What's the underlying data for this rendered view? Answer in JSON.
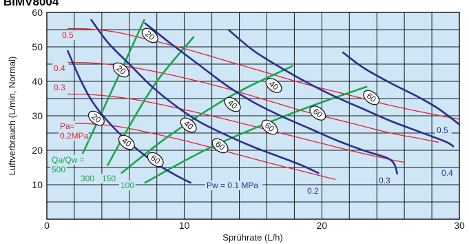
{
  "header_text": "BIMV8004",
  "chart_data": {
    "type": "line",
    "xlabel": "Sprührate (L/h)",
    "ylabel": "Luftverbrauch (L/min, Normal)",
    "xlim": [
      0,
      30
    ],
    "ylim": [
      0,
      60
    ],
    "x_ticks": [
      "0",
      "10",
      "20",
      "30"
    ],
    "y_ticks": [
      "10",
      "20",
      "30",
      "40",
      "50",
      "60"
    ],
    "grid": true,
    "colors": {
      "air_pressure": "#e8202a",
      "water_pressure": "#2b2f8f",
      "ratio": "#1aa64a",
      "plot_bg": "#cfe6f7",
      "grid": "#1a1a1a"
    },
    "air_pressure_series": [
      {
        "label": "0.5",
        "points": [
          [
            1.5,
            55.3
          ],
          [
            3,
            55.2
          ],
          [
            5,
            54.3
          ],
          [
            7,
            52.5
          ],
          [
            10,
            49.5
          ],
          [
            13,
            46
          ],
          [
            16,
            42.5
          ],
          [
            19,
            39
          ],
          [
            22,
            36
          ],
          [
            25,
            33
          ],
          [
            28,
            30.5
          ],
          [
            30,
            29
          ]
        ]
      },
      {
        "label": "0.4",
        "points": [
          [
            1.5,
            45.5
          ],
          [
            3,
            45.4
          ],
          [
            5,
            44.7
          ],
          [
            7,
            43.5
          ],
          [
            10,
            41
          ],
          [
            13,
            38
          ],
          [
            16,
            34.5
          ],
          [
            19,
            31
          ],
          [
            22,
            28
          ],
          [
            25,
            25
          ],
          [
            27,
            23.5
          ],
          [
            28.5,
            22.3
          ]
        ]
      },
      {
        "label": "0.3",
        "points": [
          [
            1.5,
            36.3
          ],
          [
            3,
            36.2
          ],
          [
            5,
            35.5
          ],
          [
            7,
            34.3
          ],
          [
            10,
            31.8
          ],
          [
            13,
            29
          ],
          [
            16,
            26
          ],
          [
            19,
            23
          ],
          [
            22,
            20
          ],
          [
            25,
            17.3
          ],
          [
            26,
            16.5
          ]
        ]
      },
      {
        "label": "Pa=\n0.2MPa",
        "points": [
          [
            1.5,
            27.8
          ],
          [
            3,
            27.7
          ],
          [
            5,
            27
          ],
          [
            7,
            25.5
          ],
          [
            10,
            22.8
          ],
          [
            13,
            19.7
          ],
          [
            16,
            16.5
          ],
          [
            19,
            13.5
          ],
          [
            21,
            11.5
          ]
        ]
      }
    ],
    "water_pressure_series": [
      {
        "label": "Pw = 0.1 MPa",
        "points": [
          [
            1.5,
            49
          ],
          [
            2.5,
            40
          ],
          [
            3.5,
            33
          ],
          [
            5,
            26
          ],
          [
            6.5,
            20.5
          ],
          [
            8,
            16
          ],
          [
            9.5,
            12.5
          ],
          [
            10.5,
            10.5
          ]
        ]
      },
      {
        "label": "0.2",
        "points": [
          [
            3.2,
            58
          ],
          [
            4.5,
            51
          ],
          [
            6,
            45
          ],
          [
            7.5,
            39
          ],
          [
            9,
            34
          ],
          [
            11,
            28.5
          ],
          [
            13,
            24.5
          ],
          [
            15,
            21
          ],
          [
            17,
            18
          ],
          [
            18.5,
            15.7
          ],
          [
            19.8,
            13.3
          ]
        ]
      },
      {
        "label": "0.3",
        "points": [
          [
            7.1,
            57
          ],
          [
            9,
            51
          ],
          [
            11,
            45
          ],
          [
            13,
            39
          ],
          [
            15,
            34
          ],
          [
            17,
            30
          ],
          [
            19,
            26.5
          ],
          [
            21,
            23
          ],
          [
            23,
            20
          ],
          [
            25,
            17.2
          ],
          [
            25.5,
            13
          ]
        ]
      },
      {
        "label": "0.4",
        "points": [
          [
            13.2,
            55
          ],
          [
            15,
            49
          ],
          [
            17,
            44
          ],
          [
            19,
            39.5
          ],
          [
            21,
            35.5
          ],
          [
            23,
            32
          ],
          [
            25,
            28.5
          ],
          [
            27,
            25.5
          ],
          [
            29,
            22.5
          ],
          [
            29.6,
            21
          ]
        ]
      },
      {
        "label": "0.5",
        "points": [
          [
            21.5,
            48.5
          ],
          [
            23,
            44
          ],
          [
            25,
            39.5
          ],
          [
            27,
            35.5
          ],
          [
            28.5,
            32
          ],
          [
            30,
            27.5
          ]
        ]
      }
    ],
    "ratio_series": [
      {
        "label": "Qa/Qw =\n500",
        "points": [
          [
            2.6,
            19
          ],
          [
            4,
            31
          ],
          [
            5.5,
            44
          ],
          [
            7.1,
            58
          ]
        ]
      },
      {
        "label": "300",
        "points": [
          [
            4.4,
            15.5
          ],
          [
            6,
            27
          ],
          [
            8,
            40
          ],
          [
            10.7,
            53
          ]
        ]
      },
      {
        "label": "150",
        "points": [
          [
            5.4,
            13.3
          ],
          [
            9,
            24.5
          ],
          [
            13.5,
            36
          ],
          [
            17.9,
            44.5
          ]
        ]
      },
      {
        "label": "100",
        "points": [
          [
            7.1,
            10.5
          ],
          [
            12,
            21
          ],
          [
            18,
            31
          ],
          [
            23.3,
            38.5
          ]
        ]
      }
    ],
    "dot_labels": [
      {
        "text": "20",
        "x": 7.5,
        "y": 53.3
      },
      {
        "text": "20",
        "x": 5.4,
        "y": 43.3
      },
      {
        "text": "20",
        "x": 3.6,
        "y": 29.3
      },
      {
        "text": "40",
        "x": 16.5,
        "y": 38.8
      },
      {
        "text": "40",
        "x": 13.5,
        "y": 33.3
      },
      {
        "text": "40",
        "x": 10.3,
        "y": 27.3
      },
      {
        "text": "40",
        "x": 5.8,
        "y": 22.3
      },
      {
        "text": "60",
        "x": 23.6,
        "y": 35.3
      },
      {
        "text": "60",
        "x": 19.7,
        "y": 30.8
      },
      {
        "text": "60",
        "x": 16.2,
        "y": 26.7
      },
      {
        "text": "60",
        "x": 12.6,
        "y": 21.3
      },
      {
        "text": "60",
        "x": 7.9,
        "y": 17.3
      }
    ]
  }
}
